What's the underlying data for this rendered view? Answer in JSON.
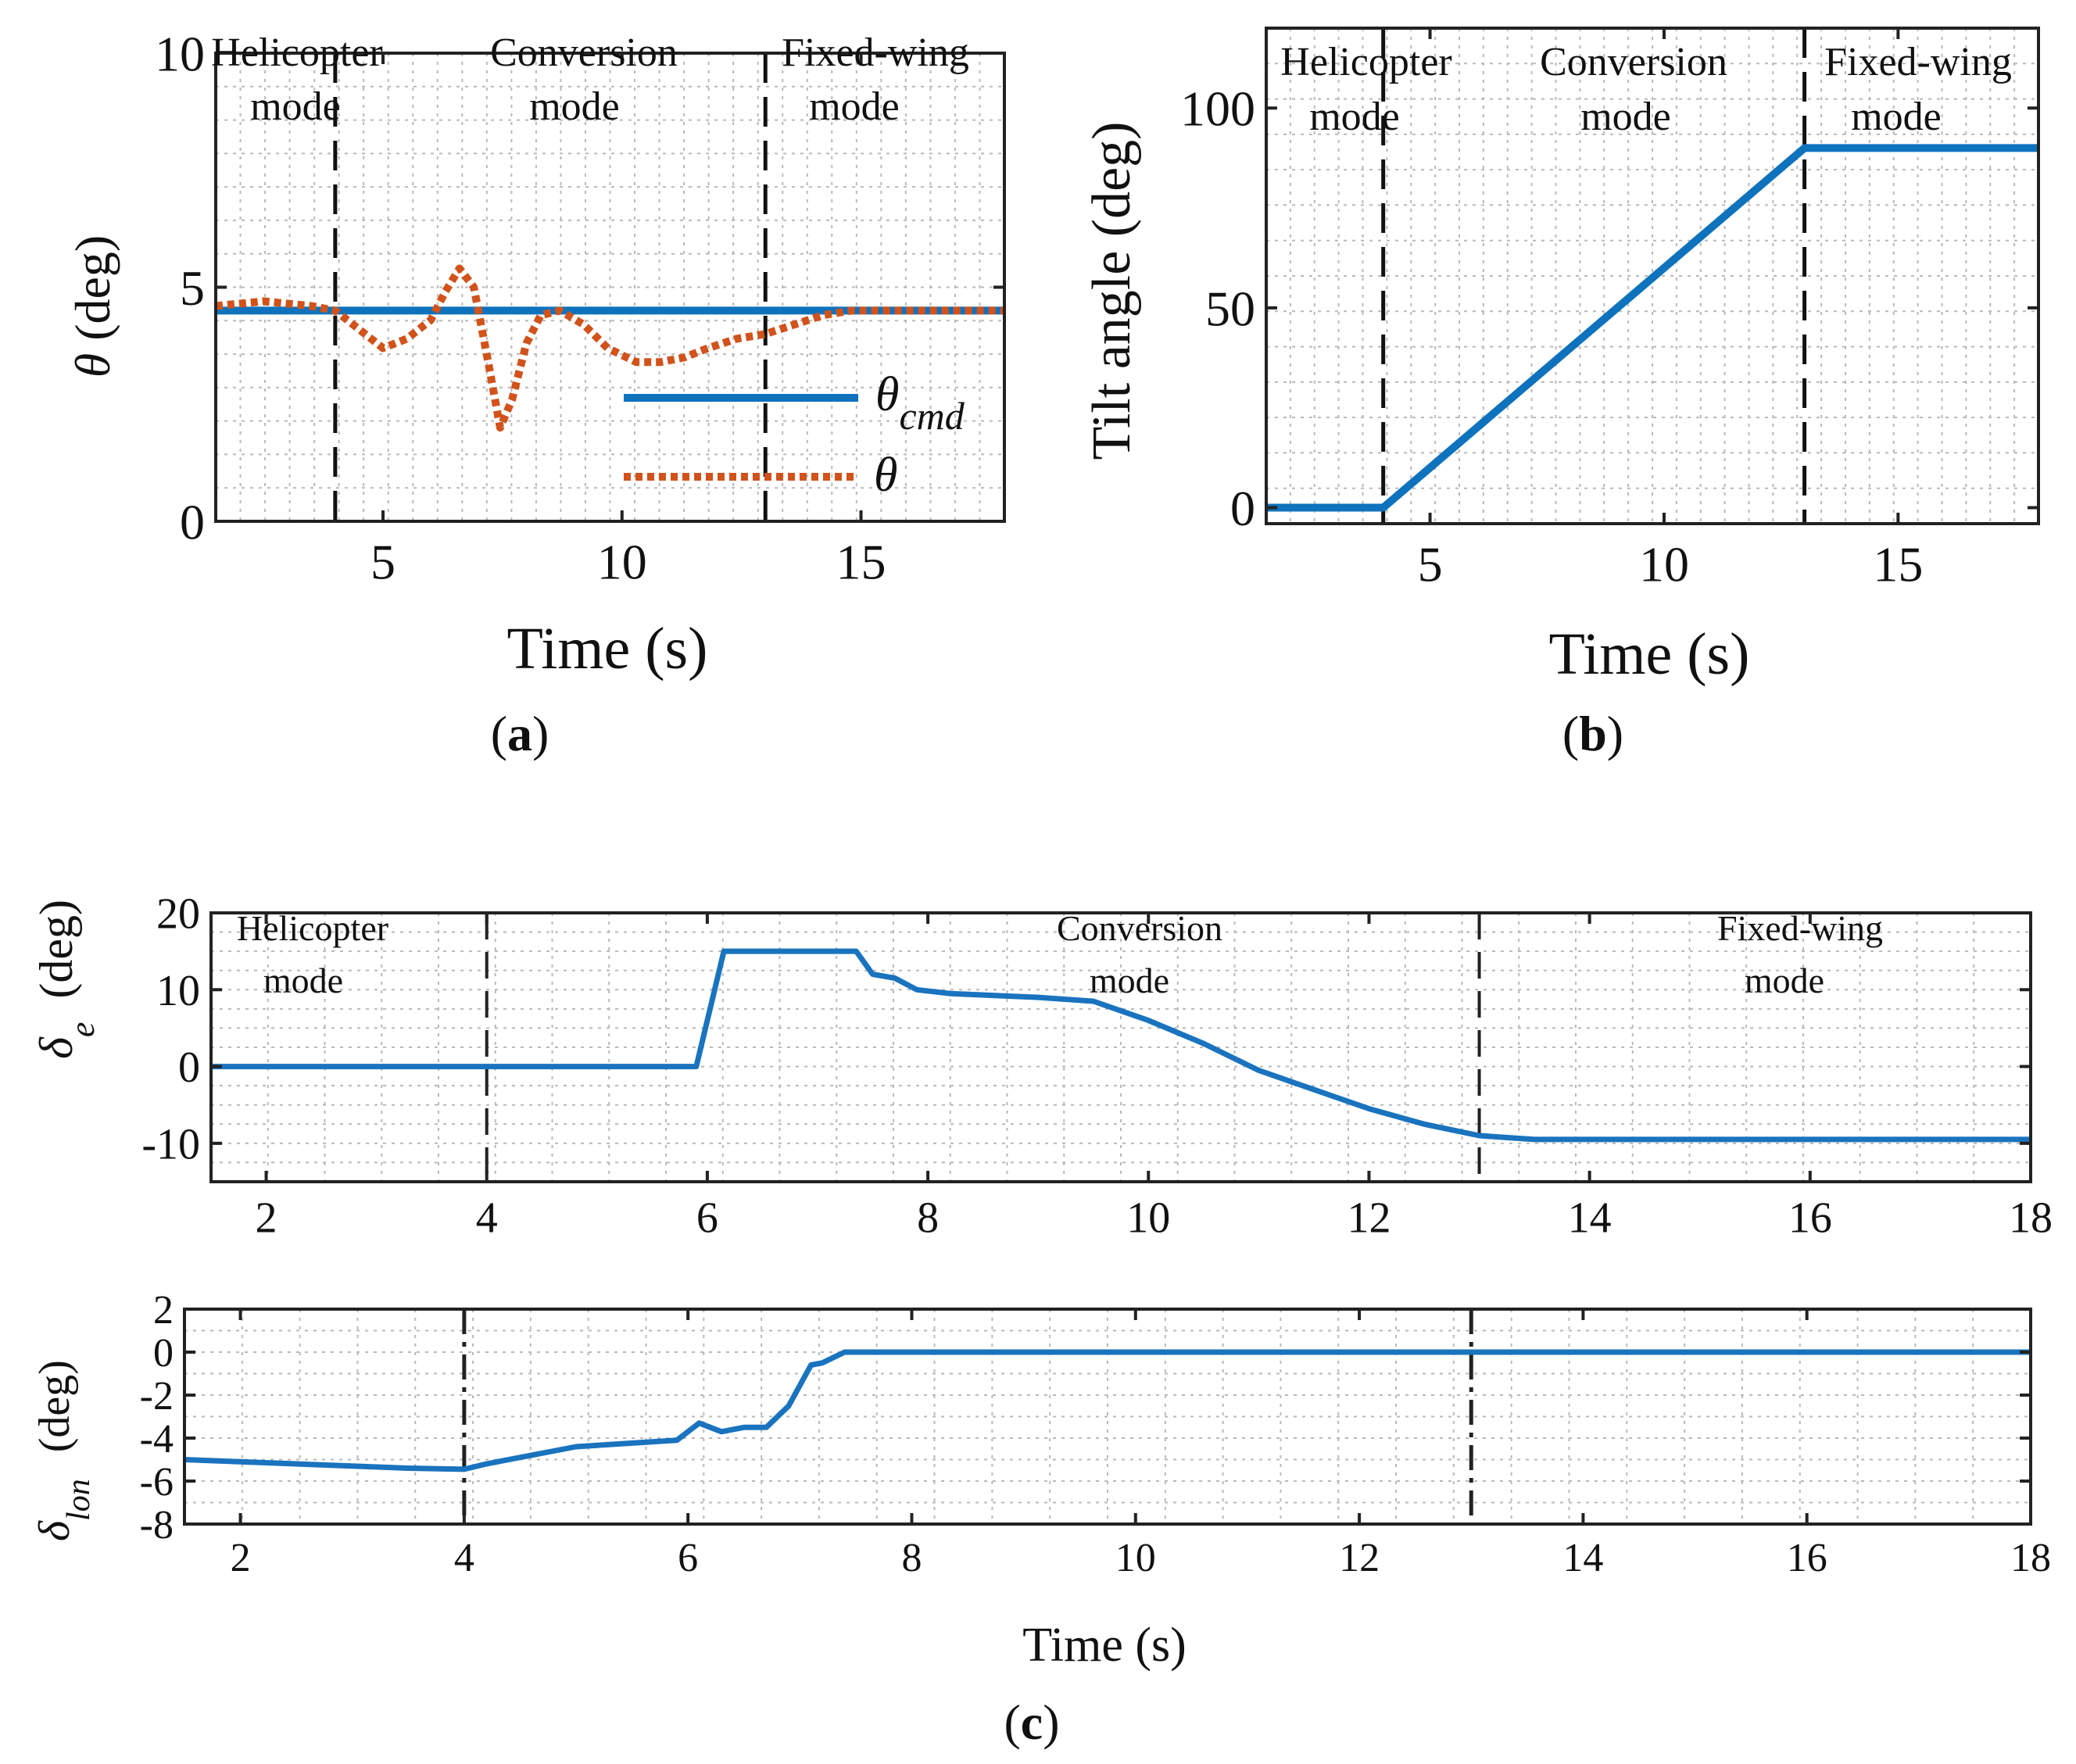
{
  "colors": {
    "blue": "#0e72bd",
    "orange": "#d1531b",
    "axis": "#222222",
    "grid": "#b9b9b9"
  },
  "charts": {
    "a": {
      "caption_letter": "a",
      "xlabel": "Time (s)",
      "ylabel_symbol": "θ",
      "ylabel_unit": " (deg)",
      "xlim": [
        1.5,
        18
      ],
      "ylim": [
        0,
        10
      ],
      "xticks": [
        5,
        10,
        15
      ],
      "yticks": [
        0,
        5,
        10
      ],
      "legend": {
        "cmd_symbol": "θ",
        "cmd_subscript": "cmd",
        "act_symbol": "θ"
      },
      "mode_lines": [
        4,
        13
      ],
      "modes": [
        {
          "line1": "Helicopter",
          "line2": "mode"
        },
        {
          "line1": "Conversion",
          "line2": "mode"
        },
        {
          "line1": "Fixed-wing",
          "line2": "mode"
        }
      ]
    },
    "b": {
      "caption_letter": "b",
      "xlabel": "Time (s)",
      "ylabel": "Tilt angle (deg)",
      "xlim": [
        1.5,
        18
      ],
      "ylim": [
        -4,
        120
      ],
      "xticks": [
        5,
        10,
        15
      ],
      "yticks": [
        0,
        50,
        100
      ],
      "mode_lines": [
        4,
        13
      ],
      "modes": [
        {
          "line1": "Helicopter",
          "line2": "mode"
        },
        {
          "line1": "Conversion",
          "line2": "mode"
        },
        {
          "line1": "Fixed-wing",
          "line2": "mode"
        }
      ]
    },
    "c1": {
      "ylabel_symbol": "δ",
      "ylabel_subscript": "e",
      "ylabel_unit": "(deg)",
      "xlim": [
        1.5,
        18
      ],
      "ylim": [
        -15,
        20
      ],
      "xticks": [
        2,
        4,
        6,
        8,
        10,
        12,
        14,
        16,
        18
      ],
      "yticks": [
        -10,
        0,
        10,
        20
      ],
      "mode_lines": [
        4,
        13
      ],
      "modes": [
        {
          "line1": "Helicopter",
          "line2": "mode"
        },
        {
          "line1": "Conversion",
          "line2": "mode"
        },
        {
          "line1": "Fixed-wing",
          "line2": "mode"
        }
      ]
    },
    "c2": {
      "caption_letter": "c",
      "xlabel": "Time (s)",
      "ylabel_symbol": "δ",
      "ylabel_subscript": "lon",
      "ylabel_unit": "(deg)",
      "xlim": [
        1.5,
        18
      ],
      "ylim": [
        -8,
        2
      ],
      "xticks": [
        2,
        4,
        6,
        8,
        10,
        12,
        14,
        16,
        18
      ],
      "yticks": [
        -8,
        -6,
        -4,
        -2,
        0,
        2
      ],
      "mode_lines": [
        4,
        13
      ]
    }
  },
  "chart_data": [
    {
      "type": "line",
      "panel": "a",
      "xlabel": "Time (s)",
      "ylabel": "θ (deg)",
      "xlim": [
        1.5,
        18
      ],
      "ylim": [
        0,
        10
      ],
      "legend_placement": "bottom-right",
      "series": [
        {
          "name": "θcmd",
          "style": "solid",
          "x": [
            1.5,
            18
          ],
          "y": [
            4.5,
            4.5
          ]
        },
        {
          "name": "θ",
          "style": "dotted",
          "x": [
            1.5,
            2.5,
            3.5,
            4.0,
            4.5,
            5.0,
            5.5,
            6.0,
            6.3,
            6.6,
            6.9,
            7.2,
            7.45,
            7.7,
            8.0,
            8.3,
            8.7,
            9.2,
            9.7,
            10.3,
            10.8,
            11.3,
            11.8,
            12.4,
            13.0,
            13.6,
            14.2,
            14.8,
            15.5,
            16.5,
            18.0
          ],
          "y": [
            4.6,
            4.7,
            4.6,
            4.5,
            4.1,
            3.7,
            3.9,
            4.3,
            4.9,
            5.4,
            5.0,
            3.4,
            2.0,
            2.6,
            3.8,
            4.4,
            4.5,
            4.2,
            3.7,
            3.4,
            3.4,
            3.5,
            3.7,
            3.9,
            4.0,
            4.2,
            4.4,
            4.5,
            4.5,
            4.5,
            4.5
          ]
        }
      ]
    },
    {
      "type": "line",
      "panel": "b",
      "xlabel": "Time (s)",
      "ylabel": "Tilt angle (deg)",
      "xlim": [
        1.5,
        18
      ],
      "ylim": [
        -4,
        120
      ],
      "series": [
        {
          "name": "Tilt angle",
          "x": [
            1.5,
            4.0,
            13.0,
            18.0
          ],
          "y": [
            0,
            0,
            90,
            90
          ]
        }
      ]
    },
    {
      "type": "line",
      "panel": "c-top",
      "ylabel": "δe (deg)",
      "xlim": [
        1.5,
        18
      ],
      "ylim": [
        -15,
        20
      ],
      "series": [
        {
          "name": "δe",
          "x": [
            1.5,
            5.9,
            6.15,
            7.35,
            7.5,
            7.7,
            7.9,
            8.2,
            9.0,
            9.5,
            10.0,
            10.5,
            11.0,
            11.5,
            12.0,
            12.5,
            13.0,
            13.5,
            14.5,
            18.0
          ],
          "y": [
            0,
            0,
            15,
            15,
            12,
            11.5,
            10,
            9.5,
            9,
            8.5,
            6,
            3,
            -0.5,
            -3,
            -5.5,
            -7.5,
            -9,
            -9.5,
            -9.5,
            -9.5
          ]
        }
      ]
    },
    {
      "type": "line",
      "panel": "c-bottom",
      "xlabel": "Time (s)",
      "ylabel": "δlon (deg)",
      "xlim": [
        1.5,
        18
      ],
      "ylim": [
        -8,
        2
      ],
      "series": [
        {
          "name": "δlon",
          "x": [
            1.5,
            2.5,
            3.5,
            4.0,
            4.2,
            5.0,
            5.9,
            6.1,
            6.3,
            6.5,
            6.7,
            6.9,
            7.1,
            7.2,
            7.4,
            18.0
          ],
          "y": [
            -5.0,
            -5.2,
            -5.4,
            -5.45,
            -5.2,
            -4.4,
            -4.1,
            -3.3,
            -3.7,
            -3.5,
            -3.5,
            -2.5,
            -0.6,
            -0.5,
            0.0,
            0.0
          ]
        }
      ]
    }
  ]
}
